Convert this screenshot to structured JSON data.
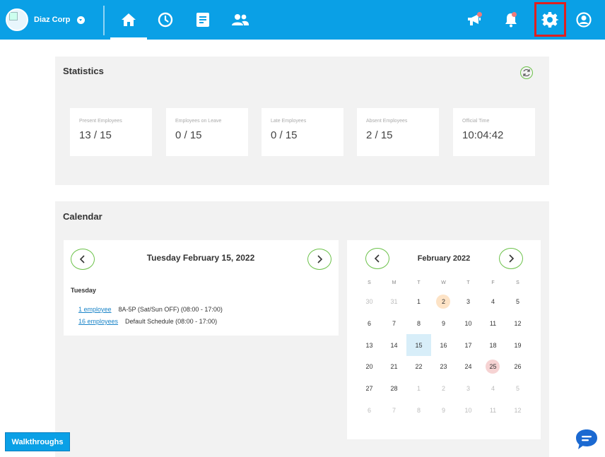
{
  "header": {
    "company": "Diaz Corp",
    "colors": {
      "bar": "#0aa0e6",
      "highlight": "#e0201f",
      "badge": "#f07a7a"
    },
    "nav_icons": [
      "home-icon",
      "clock-icon",
      "document-icon",
      "people-icon"
    ],
    "right_icons": [
      "megaphone-icon",
      "bell-icon",
      "gear-icon",
      "user-icon"
    ]
  },
  "statistics": {
    "title": "Statistics",
    "cards": [
      {
        "label": "Present Employees",
        "value": "13 / 15"
      },
      {
        "label": "Employees on Leave",
        "value": "0 / 15"
      },
      {
        "label": "Late Employees",
        "value": "0 / 15"
      },
      {
        "label": "Absent Employees",
        "value": "2 / 15"
      },
      {
        "label": "Official Time",
        "value": "10:04:42"
      }
    ]
  },
  "calendar": {
    "title": "Calendar",
    "day_title": "Tuesday February 15, 2022",
    "day_name": "Tuesday",
    "schedules": [
      {
        "link": "1 employee",
        "text": "8A-5P (Sat/Sun OFF) (08:00 - 17:00)"
      },
      {
        "link": "16 employees",
        "text": "Default Schedule (08:00 - 17:00)"
      }
    ],
    "month_title": "February 2022",
    "weekdays": [
      "S",
      "M",
      "T",
      "W",
      "T",
      "F",
      "S"
    ],
    "weeks": [
      [
        "30",
        "31",
        "1",
        "2",
        "3",
        "4",
        "5"
      ],
      [
        "6",
        "7",
        "8",
        "9",
        "10",
        "11",
        "12"
      ],
      [
        "13",
        "14",
        "15",
        "16",
        "17",
        "18",
        "19"
      ],
      [
        "20",
        "21",
        "22",
        "23",
        "24",
        "25",
        "26"
      ],
      [
        "27",
        "28",
        "1",
        "2",
        "3",
        "4",
        "5"
      ],
      [
        "6",
        "7",
        "8",
        "9",
        "10",
        "11",
        "12"
      ]
    ],
    "muted_cells": [
      [
        0,
        0
      ],
      [
        0,
        1
      ],
      [
        4,
        2
      ],
      [
        4,
        3
      ],
      [
        4,
        4
      ],
      [
        4,
        5
      ],
      [
        4,
        6
      ],
      [
        5,
        0
      ],
      [
        5,
        1
      ],
      [
        5,
        2
      ],
      [
        5,
        3
      ],
      [
        5,
        4
      ],
      [
        5,
        5
      ],
      [
        5,
        6
      ]
    ],
    "today_cell": [
      2,
      2
    ],
    "marked_cells": [
      {
        "cell": [
          0,
          3
        ],
        "color": "#fde3c6"
      },
      {
        "cell": [
          3,
          5
        ],
        "color": "#f6d3d3"
      }
    ]
  },
  "walkthroughs_label": "Walkthroughs"
}
